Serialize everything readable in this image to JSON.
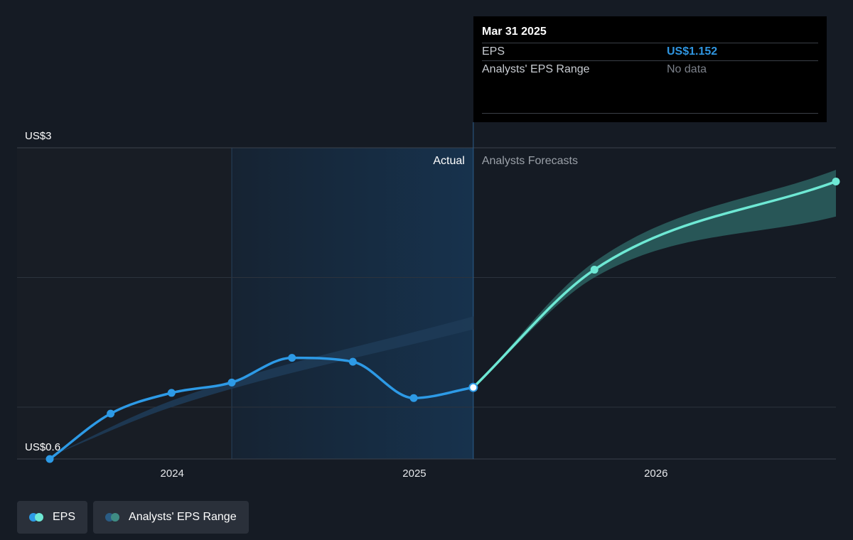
{
  "colors": {
    "background": "#151b24",
    "eps_actual": "#2d9ae6",
    "eps_forecast": "#6ee8d4",
    "range_band": "#2f6b68",
    "past_band": "#1e3b57",
    "highlight_region": "#17324d",
    "grid": "#2c333d"
  },
  "tooltip": {
    "date": "Mar 31 2025",
    "rows": [
      {
        "label": "EPS",
        "value": "US$1.152"
      },
      {
        "label": "Analysts' EPS Range",
        "value": "No data"
      }
    ]
  },
  "labels": {
    "actual": "Actual",
    "forecasts": "Analysts Forecasts"
  },
  "legend": [
    {
      "label": "EPS",
      "icon": "eps-dots-icon"
    },
    {
      "label": "Analysts' EPS Range",
      "icon": "range-dots-icon"
    }
  ],
  "chart_data": {
    "type": "line",
    "y_ticks": [
      {
        "value": 3,
        "label": "US$3"
      },
      {
        "value": 0.6,
        "label": "US$0.6"
      }
    ],
    "ylim": [
      0.6,
      3
    ],
    "x_ticks": [
      {
        "date": "2024-01-01",
        "label": "2024"
      },
      {
        "date": "2025-01-01",
        "label": "2025"
      },
      {
        "date": "2026-01-01",
        "label": "2026"
      }
    ],
    "xlim": [
      "2023-07-01",
      "2026-09-30"
    ],
    "grid": "horizontal",
    "divider_date": "2025-03-31",
    "highlight_start": "2024-03-31",
    "series": [
      {
        "name": "EPS",
        "role": "actual",
        "points": [
          {
            "date": "2023-06-30",
            "value": 0.6
          },
          {
            "date": "2023-09-30",
            "value": 0.95
          },
          {
            "date": "2023-12-31",
            "value": 1.11
          },
          {
            "date": "2024-03-31",
            "value": 1.19
          },
          {
            "date": "2024-06-30",
            "value": 1.38
          },
          {
            "date": "2024-09-30",
            "value": 1.35
          },
          {
            "date": "2024-12-31",
            "value": 1.07
          },
          {
            "date": "2025-03-31",
            "value": 1.152
          }
        ]
      },
      {
        "name": "EPS",
        "role": "forecast",
        "points": [
          {
            "date": "2025-03-31",
            "value": 1.152
          },
          {
            "date": "2025-09-30",
            "value": 2.06
          },
          {
            "date": "2026-09-30",
            "value": 2.74
          }
        ]
      }
    ],
    "range_band": [
      {
        "date": "2025-03-31",
        "low": 1.152,
        "high": 1.152
      },
      {
        "date": "2025-09-30",
        "low": 2.0,
        "high": 2.12
      },
      {
        "date": "2026-09-30",
        "low": 2.47,
        "high": 2.83
      }
    ],
    "past_range_band": [
      {
        "date": "2023-06-30",
        "low": 0.62,
        "high": 0.62
      },
      {
        "date": "2023-12-31",
        "low": 1.0,
        "high": 1.05
      },
      {
        "date": "2025-03-31",
        "low": 1.6,
        "high": 1.7
      }
    ]
  }
}
